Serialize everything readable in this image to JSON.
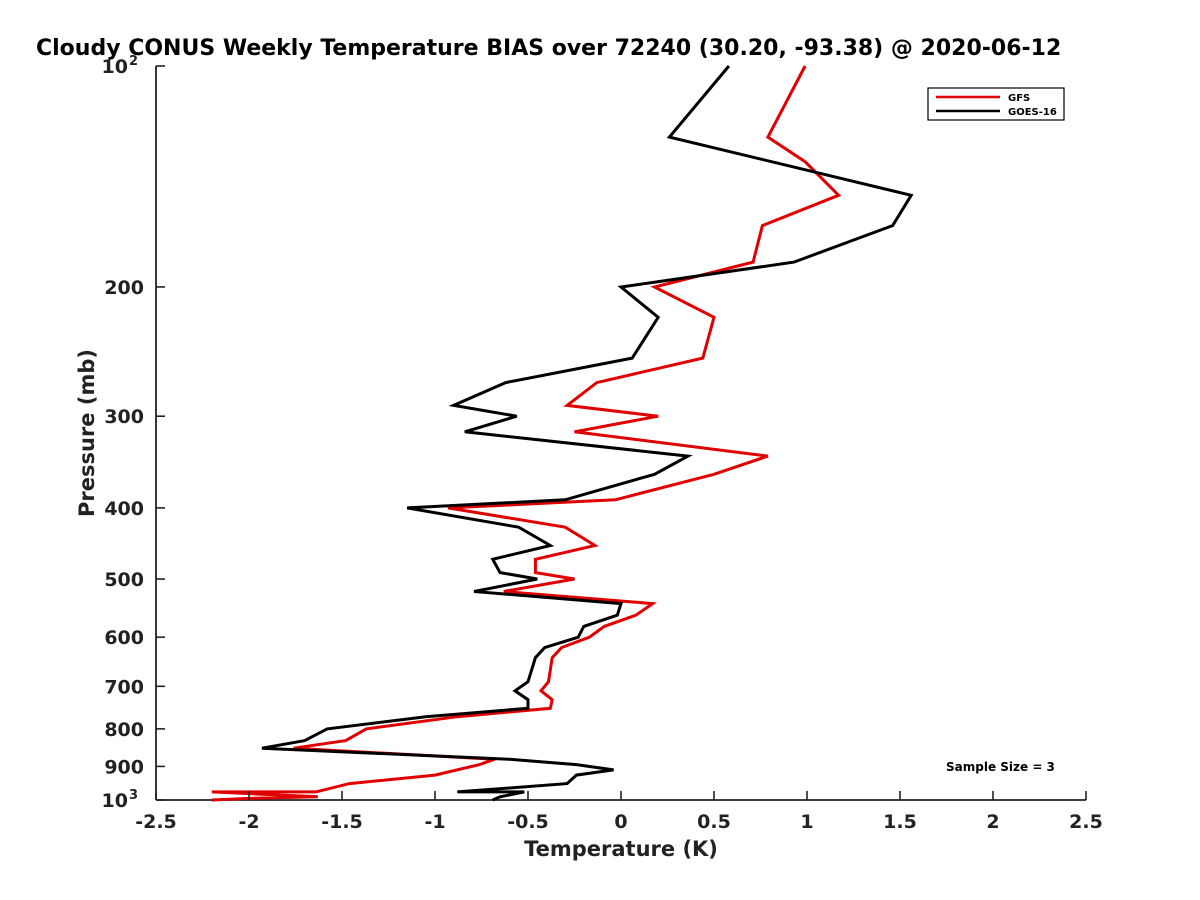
{
  "chart_data": {
    "type": "line",
    "title": "Cloudy CONUS Weekly Temperature BIAS over 72240 (30.20, -93.38) @ 2020-06-12",
    "xlabel": "Temperature (K)",
    "ylabel": "Pressure (mb)",
    "xlim": [
      -2.5,
      2.5
    ],
    "ylim": [
      100,
      1000
    ],
    "yscale": "log",
    "yreversed": true,
    "grid": false,
    "legend_position": "top-right",
    "x_ticks": [
      {
        "value": -2.5,
        "label": "-2.5"
      },
      {
        "value": -2,
        "label": "-2"
      },
      {
        "value": -1.5,
        "label": "-1.5"
      },
      {
        "value": -1,
        "label": "-1"
      },
      {
        "value": -0.5,
        "label": "-0.5"
      },
      {
        "value": 0,
        "label": "0"
      },
      {
        "value": 0.5,
        "label": "0.5"
      },
      {
        "value": 1,
        "label": "1"
      },
      {
        "value": 1.5,
        "label": "1.5"
      },
      {
        "value": 2,
        "label": "2"
      },
      {
        "value": 2.5,
        "label": "2.5"
      }
    ],
    "y_ticks": [
      {
        "value": 100,
        "label": "10",
        "sup": "2"
      },
      {
        "value": 200,
        "label": "200"
      },
      {
        "value": 300,
        "label": "300"
      },
      {
        "value": 400,
        "label": "400"
      },
      {
        "value": 500,
        "label": "500"
      },
      {
        "value": 600,
        "label": "600"
      },
      {
        "value": 700,
        "label": "700"
      },
      {
        "value": 800,
        "label": "800"
      },
      {
        "value": 900,
        "label": "900"
      },
      {
        "value": 1000,
        "label": "10",
        "sup": "3"
      }
    ],
    "series": [
      {
        "name": "GFS",
        "color": "#e00000",
        "points": [
          {
            "p": 100,
            "t": 0.99
          },
          {
            "p": 125,
            "t": 0.79
          },
          {
            "p": 135,
            "t": 0.99
          },
          {
            "p": 150,
            "t": 1.17
          },
          {
            "p": 165,
            "t": 0.76
          },
          {
            "p": 185,
            "t": 0.71
          },
          {
            "p": 200,
            "t": 0.18
          },
          {
            "p": 220,
            "t": 0.5
          },
          {
            "p": 250,
            "t": 0.44
          },
          {
            "p": 270,
            "t": -0.13
          },
          {
            "p": 290,
            "t": -0.29
          },
          {
            "p": 300,
            "t": 0.2
          },
          {
            "p": 315,
            "t": -0.25
          },
          {
            "p": 340,
            "t": 0.79
          },
          {
            "p": 360,
            "t": 0.5
          },
          {
            "p": 390,
            "t": -0.03
          },
          {
            "p": 400,
            "t": -0.93
          },
          {
            "p": 425,
            "t": -0.3
          },
          {
            "p": 450,
            "t": -0.14
          },
          {
            "p": 470,
            "t": -0.46
          },
          {
            "p": 490,
            "t": -0.46
          },
          {
            "p": 500,
            "t": -0.25
          },
          {
            "p": 520,
            "t": -0.63
          },
          {
            "p": 540,
            "t": 0.17
          },
          {
            "p": 560,
            "t": 0.08
          },
          {
            "p": 580,
            "t": -0.09
          },
          {
            "p": 600,
            "t": -0.17
          },
          {
            "p": 620,
            "t": -0.32
          },
          {
            "p": 640,
            "t": -0.37
          },
          {
            "p": 690,
            "t": -0.39
          },
          {
            "p": 710,
            "t": -0.43
          },
          {
            "p": 730,
            "t": -0.37
          },
          {
            "p": 750,
            "t": -0.38
          },
          {
            "p": 770,
            "t": -0.88
          },
          {
            "p": 800,
            "t": -1.37
          },
          {
            "p": 830,
            "t": -1.48
          },
          {
            "p": 850,
            "t": -1.76
          },
          {
            "p": 880,
            "t": -0.68
          },
          {
            "p": 895,
            "t": -0.76
          },
          {
            "p": 925,
            "t": -1.0
          },
          {
            "p": 950,
            "t": -1.46
          },
          {
            "p": 975,
            "t": -1.64
          },
          {
            "p": 975,
            "t": -2.2
          },
          {
            "p": 990,
            "t": -1.63
          },
          {
            "p": 995,
            "t": -2.0
          },
          {
            "p": 1000,
            "t": -2.2
          }
        ]
      },
      {
        "name": "GOES-16",
        "color": "#000000",
        "points": [
          {
            "p": 100,
            "t": 0.58
          },
          {
            "p": 125,
            "t": 0.26
          },
          {
            "p": 150,
            "t": 1.56
          },
          {
            "p": 165,
            "t": 1.46
          },
          {
            "p": 185,
            "t": 0.93
          },
          {
            "p": 200,
            "t": 0.0
          },
          {
            "p": 220,
            "t": 0.2
          },
          {
            "p": 250,
            "t": 0.06
          },
          {
            "p": 270,
            "t": -0.62
          },
          {
            "p": 290,
            "t": -0.9
          },
          {
            "p": 300,
            "t": -0.56
          },
          {
            "p": 315,
            "t": -0.84
          },
          {
            "p": 340,
            "t": 0.36
          },
          {
            "p": 360,
            "t": 0.18
          },
          {
            "p": 390,
            "t": -0.3
          },
          {
            "p": 400,
            "t": -1.15
          },
          {
            "p": 425,
            "t": -0.55
          },
          {
            "p": 450,
            "t": -0.38
          },
          {
            "p": 470,
            "t": -0.69
          },
          {
            "p": 490,
            "t": -0.65
          },
          {
            "p": 500,
            "t": -0.45
          },
          {
            "p": 520,
            "t": -0.79
          },
          {
            "p": 540,
            "t": 0.0
          },
          {
            "p": 560,
            "t": -0.02
          },
          {
            "p": 580,
            "t": -0.2
          },
          {
            "p": 600,
            "t": -0.23
          },
          {
            "p": 620,
            "t": -0.41
          },
          {
            "p": 640,
            "t": -0.46
          },
          {
            "p": 690,
            "t": -0.5
          },
          {
            "p": 710,
            "t": -0.57
          },
          {
            "p": 730,
            "t": -0.5
          },
          {
            "p": 750,
            "t": -0.5
          },
          {
            "p": 770,
            "t": -1.05
          },
          {
            "p": 800,
            "t": -1.58
          },
          {
            "p": 830,
            "t": -1.7
          },
          {
            "p": 850,
            "t": -1.93
          },
          {
            "p": 880,
            "t": -0.6
          },
          {
            "p": 895,
            "t": -0.24
          },
          {
            "p": 910,
            "t": -0.04
          },
          {
            "p": 925,
            "t": -0.24
          },
          {
            "p": 950,
            "t": -0.29
          },
          {
            "p": 975,
            "t": -0.88
          },
          {
            "p": 975,
            "t": -0.52
          },
          {
            "p": 990,
            "t": -0.65
          },
          {
            "p": 1000,
            "t": -0.69
          }
        ]
      }
    ],
    "annotation": "Sample Size = 3"
  }
}
